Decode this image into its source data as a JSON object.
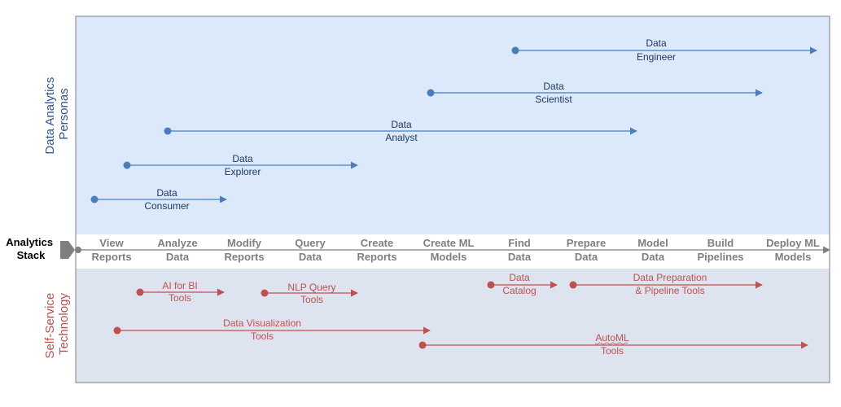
{
  "colors": {
    "persona_bg": "#dbe9fb",
    "tech_bg": "#dde4f0",
    "persona": "#4a7ebb",
    "persona_text": "#1f3864",
    "tech": "#c0504d",
    "stack_text": "#7f7f7f"
  },
  "personas_section": {
    "line1": "Data Analytics",
    "line2": "Personas"
  },
  "tech_section": {
    "line1": "Self-Service",
    "line2": "Technology"
  },
  "stack_label": {
    "line1": "Analytics",
    "line2": "Stack"
  },
  "stack": [
    {
      "line1": "View",
      "line2": "Reports"
    },
    {
      "line1": "Analyze",
      "line2": "Data"
    },
    {
      "line1": "Modify",
      "line2": "Reports"
    },
    {
      "line1": "Query",
      "line2": "Data"
    },
    {
      "line1": "Create",
      "line2": "Reports"
    },
    {
      "line1": "Create ML",
      "line2": "Models"
    },
    {
      "line1": "Find",
      "line2": "Data"
    },
    {
      "line1": "Prepare",
      "line2": "Data"
    },
    {
      "line1": "Model",
      "line2": "Data"
    },
    {
      "line1": "Build",
      "line2": "Pipelines"
    },
    {
      "line1": "Deploy ML",
      "line2": "Models"
    }
  ],
  "personas": [
    {
      "line1": "Data",
      "line2": "Engineer"
    },
    {
      "line1": "Data",
      "line2": "Scientist"
    },
    {
      "line1": "Data",
      "line2": "Analyst"
    },
    {
      "line1": "Data",
      "line2": "Explorer"
    },
    {
      "line1": "Data",
      "line2": "Consumer"
    }
  ],
  "technologies": [
    {
      "line1": "AI for BI",
      "line2": "Tools"
    },
    {
      "line1": "NLP Query",
      "line2": "Tools"
    },
    {
      "line1": "Data",
      "line2": "Catalog"
    },
    {
      "line1": "Data Preparation",
      "line2": "& Pipeline Tools"
    },
    {
      "line1": "Data Visualization",
      "line2": "Tools"
    },
    {
      "line1": "AutoML",
      "line2": "Tools"
    }
  ]
}
